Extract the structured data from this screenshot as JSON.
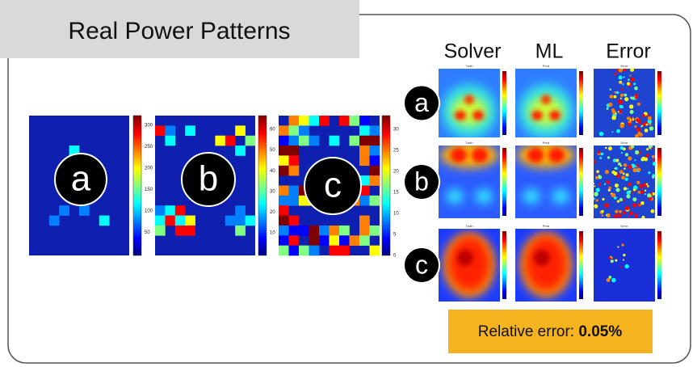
{
  "header": {
    "title": "Real Power Patterns"
  },
  "left_panels": [
    {
      "label": "a",
      "colorbar_ticks": [
        "300",
        "250",
        "200",
        "150",
        "100",
        "50"
      ]
    },
    {
      "label": "b",
      "colorbar_ticks": [
        "60",
        "50",
        "40",
        "30",
        "20",
        "10"
      ]
    },
    {
      "label": "c",
      "colorbar_ticks": [
        "30",
        "25",
        "20",
        "15",
        "10",
        "5",
        "0"
      ]
    }
  ],
  "comparison": {
    "columns": [
      "Solver",
      "ML",
      "Error"
    ],
    "panel_titles": [
      "Truth",
      "Pred",
      "Error"
    ],
    "rows": [
      {
        "label": "a"
      },
      {
        "label": "b"
      },
      {
        "label": "c"
      }
    ]
  },
  "footer": {
    "label": "Relative error:",
    "value": "0.05%"
  }
}
